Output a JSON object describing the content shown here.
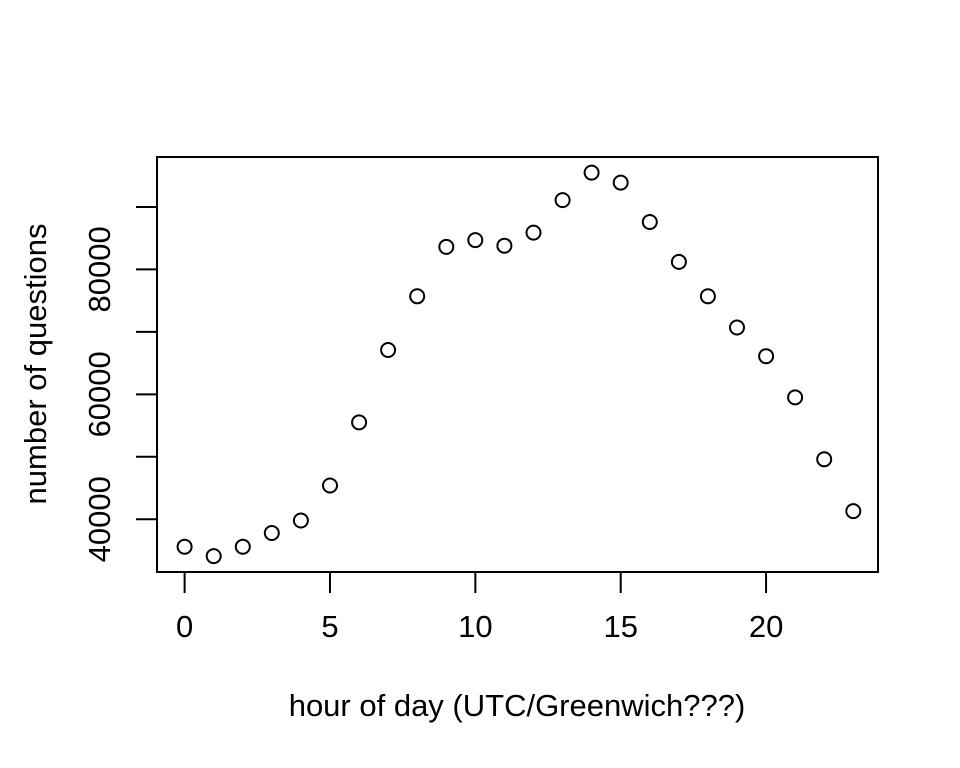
{
  "figure": {
    "background_color": "#ffffff",
    "foreground_color": "#000000"
  },
  "chart_data": {
    "type": "scatter",
    "title": "",
    "xlabel": "hour of day (UTC/Greenwich???)",
    "ylabel": "number of questions",
    "marker": "open-circle",
    "grid": false,
    "legend": "none",
    "x": [
      0,
      1,
      2,
      3,
      4,
      5,
      6,
      7,
      8,
      9,
      10,
      11,
      12,
      13,
      14,
      15,
      16,
      17,
      18,
      19,
      20,
      21,
      22,
      23
    ],
    "y": [
      35600,
      34100,
      35600,
      37800,
      39800,
      45400,
      55500,
      67100,
      75700,
      83600,
      84700,
      83800,
      85900,
      91100,
      95500,
      93900,
      87600,
      81200,
      75700,
      70700,
      66100,
      59500,
      49600,
      41300
    ],
    "xlim": [
      -0.95,
      23.85
    ],
    "ylim": [
      31550,
      98000
    ],
    "x_ticks": [
      0,
      5,
      10,
      15,
      20
    ],
    "x_tick_labels": [
      "0",
      "5",
      "10",
      "15",
      "20"
    ],
    "y_ticks": [
      40000,
      50000,
      60000,
      70000,
      80000,
      90000
    ],
    "y_tick_labels": [
      "40000",
      "",
      "60000",
      "",
      "80000",
      ""
    ]
  }
}
